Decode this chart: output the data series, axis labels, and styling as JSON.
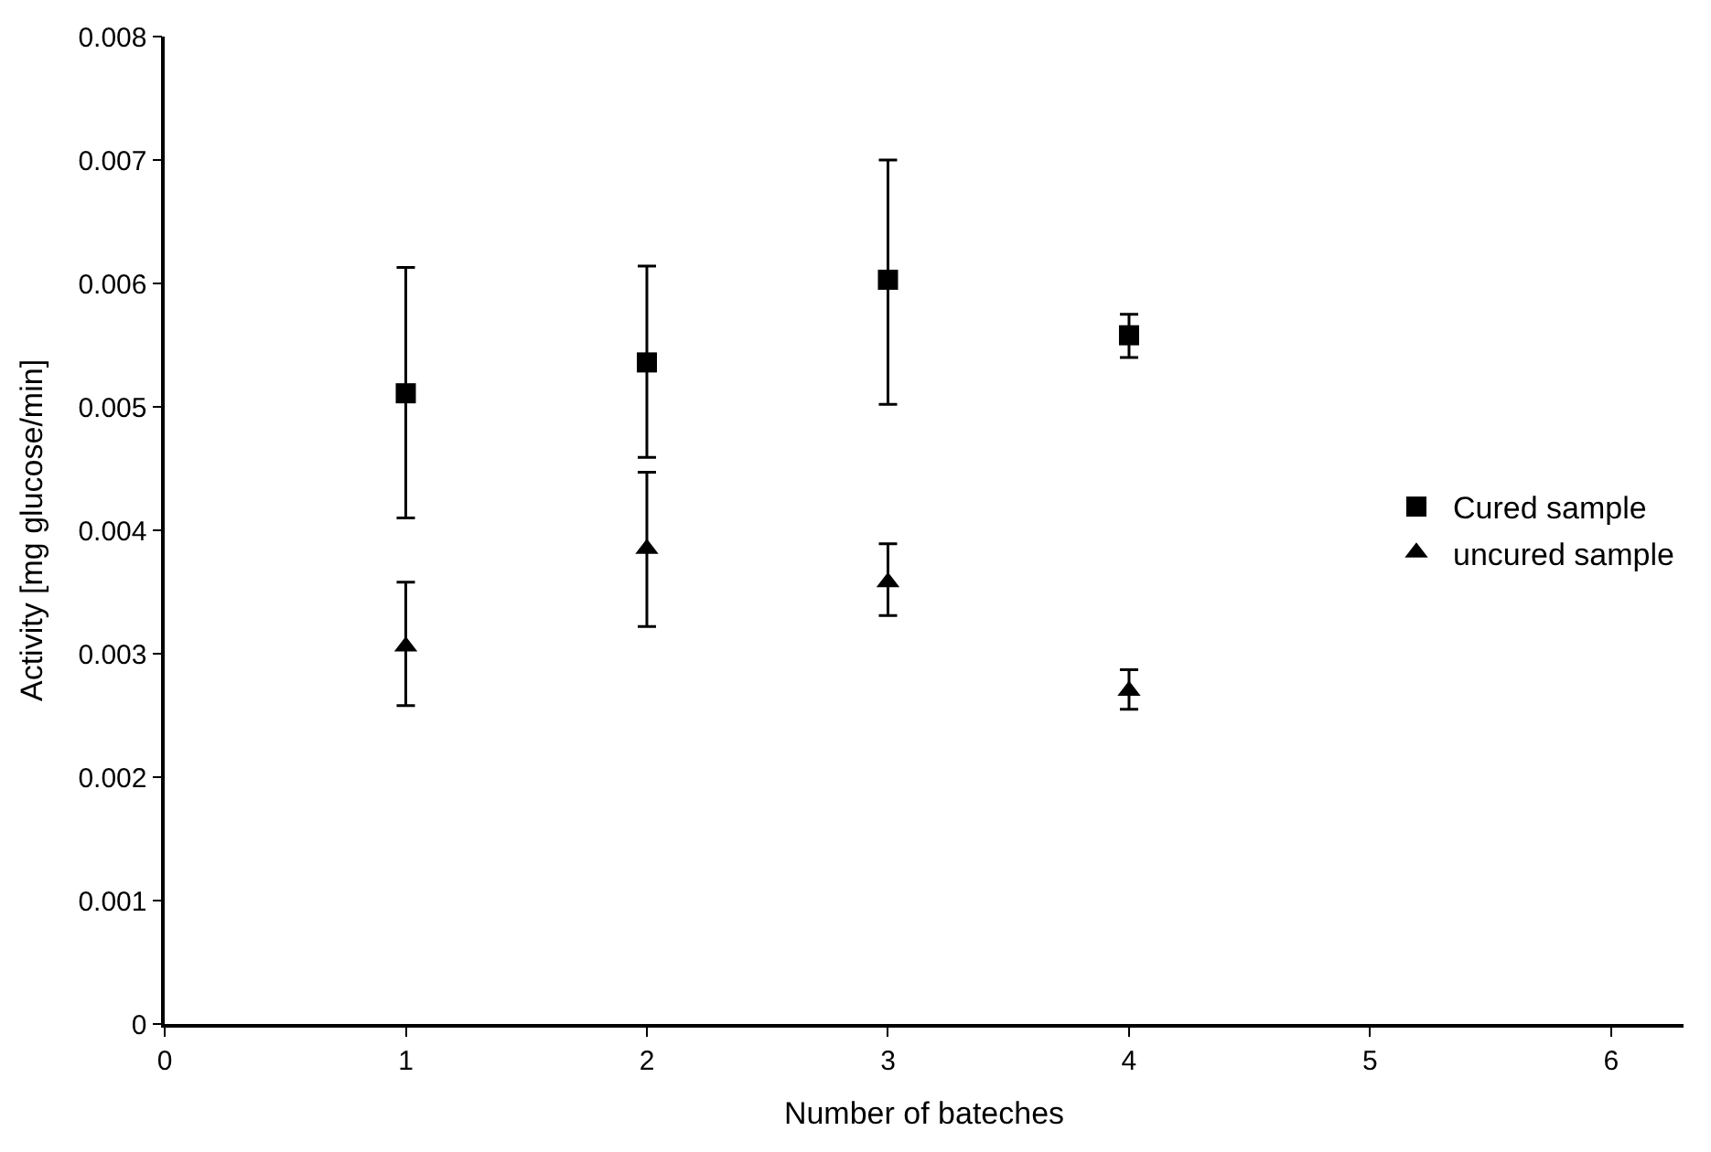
{
  "chart_data": {
    "type": "scatter",
    "xlabel": "Number of bateches",
    "ylabel": "Activity [mg glucose/min]",
    "x": [
      1,
      2,
      3,
      4
    ],
    "series": [
      {
        "name": "Cured sample",
        "color": "#000000",
        "marker": "square",
        "values": [
          0.00511,
          0.00536,
          0.00603,
          0.00558
        ],
        "errors": [
          [
            0.0041,
            0.00613
          ],
          [
            0.00459,
            0.00614
          ],
          [
            0.00502,
            0.007
          ],
          [
            0.0054,
            0.00575
          ]
        ]
      },
      {
        "name": "uncured sample",
        "color": "#000000",
        "marker": "triangle",
        "values": [
          0.00306,
          0.00385,
          0.00358,
          0.0027
        ],
        "errors": [
          [
            0.00258,
            0.00358
          ],
          [
            0.00322,
            0.00447
          ],
          [
            0.00331,
            0.00389
          ],
          [
            0.00255,
            0.00287
          ]
        ]
      }
    ],
    "xlim": [
      0,
      6.3
    ],
    "xticks": [
      0,
      1,
      2,
      3,
      4,
      5,
      6
    ],
    "ylim": [
      0,
      0.008
    ],
    "yticks": [
      0,
      0.001,
      0.002,
      0.003,
      0.004,
      0.005,
      0.006,
      0.007,
      0.008
    ],
    "legend": "right"
  }
}
